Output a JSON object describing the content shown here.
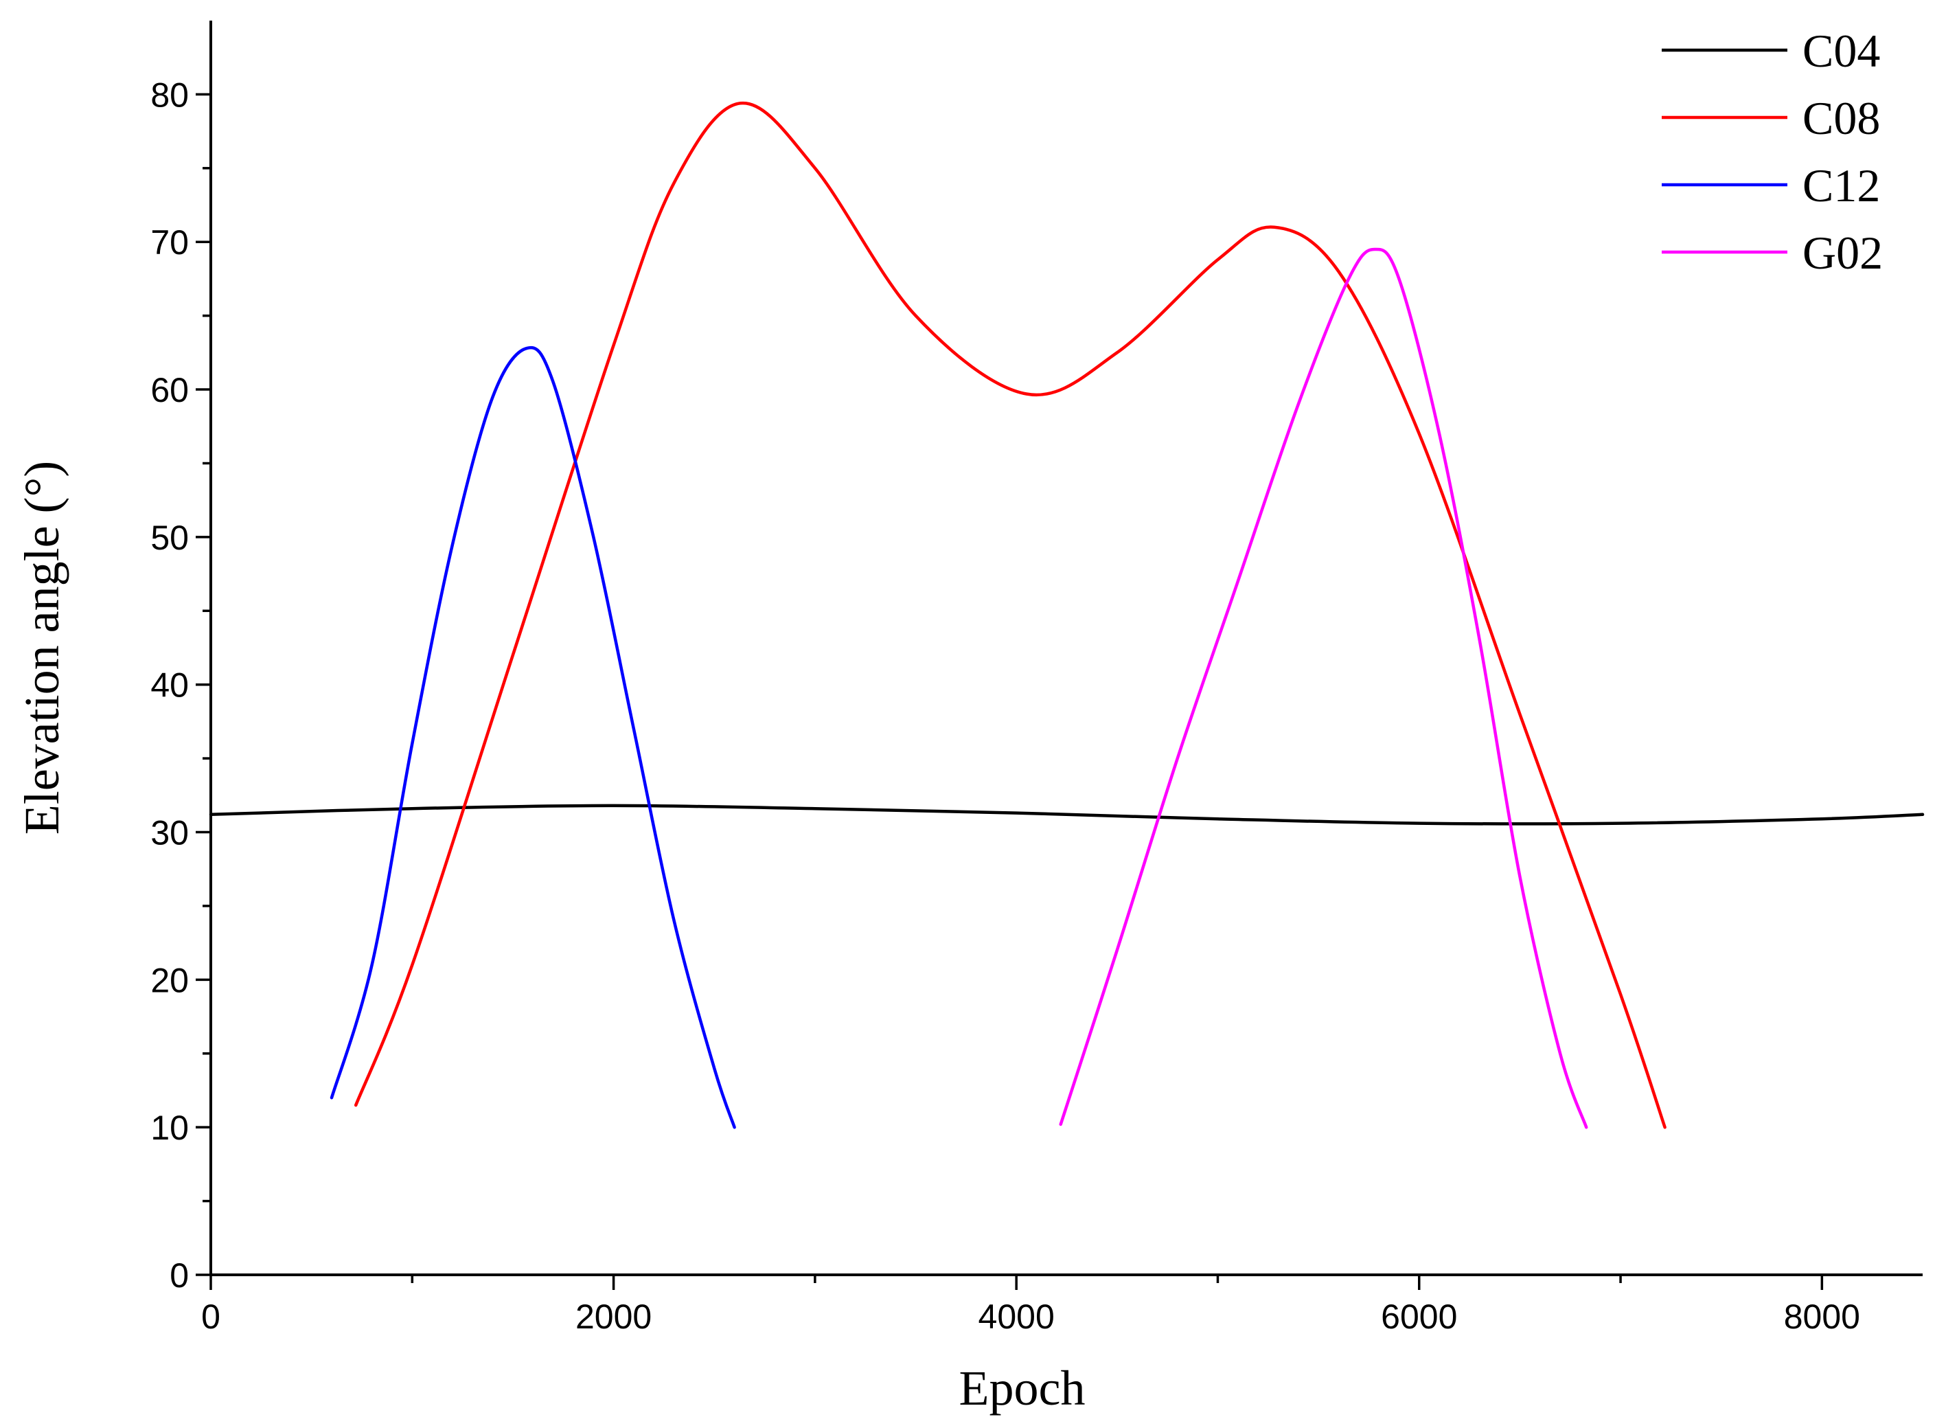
{
  "chart_data": {
    "type": "line",
    "title": "",
    "xlabel": "Epoch",
    "ylabel": "Elevation angle (°)",
    "xlim": [
      0,
      8500
    ],
    "ylim": [
      0,
      85
    ],
    "x_major_ticks": [
      0,
      2000,
      4000,
      6000,
      8000
    ],
    "x_tick_labels": [
      "0",
      "2000",
      "4000",
      "6000",
      "8000"
    ],
    "x_minor_ticks": [
      1000,
      3000,
      5000,
      7000
    ],
    "y_major_ticks": [
      0,
      10,
      20,
      30,
      40,
      50,
      60,
      70,
      80
    ],
    "y_tick_labels": [
      "0",
      "10",
      "20",
      "30",
      "40",
      "50",
      "60",
      "70",
      "80"
    ],
    "y_minor_step": 5,
    "grid": false,
    "legend_position": "top-right",
    "series": [
      {
        "name": "C04",
        "color": "#000000",
        "x": [
          0,
          1000,
          2000,
          3000,
          4000,
          5000,
          6000,
          7000,
          8000,
          8500
        ],
        "y": [
          31.2,
          31.6,
          31.8,
          31.6,
          31.3,
          30.9,
          30.6,
          30.6,
          30.9,
          31.2
        ]
      },
      {
        "name": "C08",
        "color": "#ff0000",
        "x": [
          720,
          1000,
          1500,
          2000,
          2300,
          2630,
          3000,
          3500,
          4050,
          4500,
          5000,
          5280,
          5600,
          6000,
          6500,
          7000,
          7220
        ],
        "y": [
          11.5,
          21,
          42,
          63,
          74,
          79.4,
          75,
          65,
          59.7,
          62.5,
          68.8,
          71,
          68,
          57,
          38,
          19,
          10
        ]
      },
      {
        "name": "C12",
        "color": "#0000ff",
        "x": [
          600,
          800,
          1000,
          1200,
          1400,
          1570,
          1700,
          1900,
          2100,
          2300,
          2500,
          2600
        ],
        "y": [
          12,
          21,
          36,
          49.5,
          59.5,
          62.8,
          60.5,
          50,
          37,
          24,
          14,
          10
        ]
      },
      {
        "name": "G02",
        "color": "#ff00ff",
        "x": [
          4220,
          4500,
          4800,
          5100,
          5400,
          5650,
          5780,
          5900,
          6100,
          6300,
          6500,
          6700,
          6830
        ],
        "y": [
          10.2,
          22,
          35,
          47,
          59,
          67.5,
          69.5,
          67.5,
          57,
          43,
          27,
          15,
          10
        ]
      }
    ]
  }
}
